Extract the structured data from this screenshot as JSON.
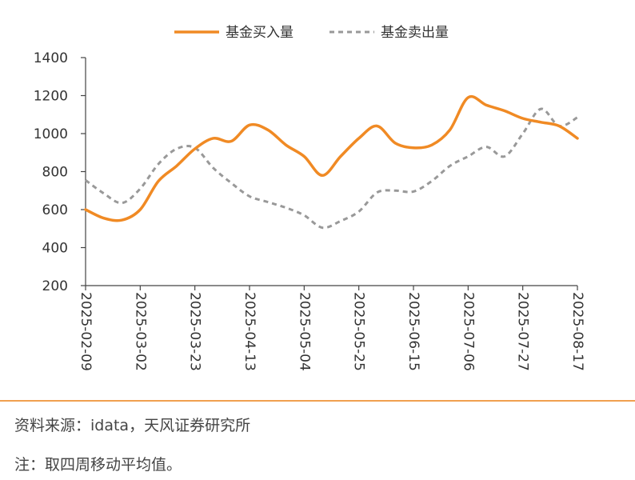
{
  "source_text": "资料来源：idata，天风证券研究所",
  "note_text": "注：取四周移动平均值。",
  "chart_data": {
    "type": "line",
    "title": "",
    "xlabel": "",
    "ylabel": "",
    "ylim": [
      200,
      1400
    ],
    "yticks": [
      200,
      400,
      600,
      800,
      1000,
      1200,
      1400
    ],
    "legend_position": "top-center",
    "grid": false,
    "x": [
      "2025-02-09",
      "2025-02-16",
      "2025-02-23",
      "2025-03-02",
      "2025-03-09",
      "2025-03-16",
      "2025-03-23",
      "2025-03-30",
      "2025-04-06",
      "2025-04-13",
      "2025-04-20",
      "2025-04-27",
      "2025-05-04",
      "2025-05-11",
      "2025-05-18",
      "2025-05-25",
      "2025-06-01",
      "2025-06-08",
      "2025-06-15",
      "2025-06-22",
      "2025-06-29",
      "2025-07-06",
      "2025-07-13",
      "2025-07-20",
      "2025-07-27",
      "2025-08-03",
      "2025-08-10",
      "2025-08-17"
    ],
    "xtick_labels": [
      "2025-02-09",
      "2025-03-02",
      "2025-03-23",
      "2025-04-13",
      "2025-05-04",
      "2025-05-25",
      "2025-06-15",
      "2025-07-06",
      "2025-07-27",
      "2025-08-17"
    ],
    "series": [
      {
        "name": "基金买入量",
        "color": "#f08a24",
        "style": "solid",
        "values": [
          600,
          555,
          545,
          600,
          750,
          830,
          920,
          975,
          960,
          1045,
          1020,
          940,
          880,
          780,
          880,
          975,
          1040,
          950,
          925,
          940,
          1020,
          1190,
          1150,
          1120,
          1080,
          1060,
          1040,
          975
        ]
      },
      {
        "name": "基金卖出量",
        "color": "#999999",
        "style": "dashed",
        "values": [
          755,
          685,
          635,
          710,
          840,
          920,
          925,
          820,
          740,
          670,
          640,
          610,
          570,
          505,
          540,
          590,
          690,
          700,
          695,
          750,
          830,
          880,
          930,
          880,
          1000,
          1130,
          1040,
          1085
        ]
      }
    ]
  }
}
